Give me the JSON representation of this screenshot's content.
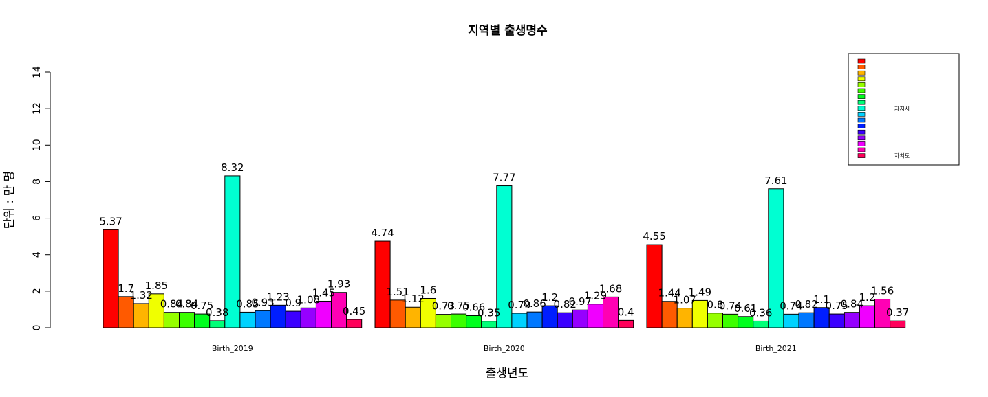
{
  "chart_data": {
    "type": "bar",
    "title": "지역별 출생명수",
    "xlabel": "출생년도",
    "ylabel": "단위 : 만 명",
    "ylim": [
      0,
      14
    ],
    "yticks": [
      0,
      2,
      4,
      6,
      8,
      10,
      12,
      14
    ],
    "grid": false,
    "legend_position": "top-right",
    "categories": [
      "Birth_2019",
      "Birth_2020",
      "Birth_2021"
    ],
    "series": [
      {
        "color": "#FF0000",
        "values": [
          5.37,
          4.74,
          4.55
        ]
      },
      {
        "color": "#FF5A00",
        "values": [
          1.7,
          1.51,
          1.44
        ]
      },
      {
        "color": "#FFB400",
        "values": [
          1.32,
          1.12,
          1.07
        ]
      },
      {
        "color": "#F0FF00",
        "values": [
          1.85,
          1.6,
          1.49
        ]
      },
      {
        "color": "#96FF00",
        "values": [
          0.84,
          0.73,
          0.8
        ]
      },
      {
        "color": "#3CFF00",
        "values": [
          0.84,
          0.75,
          0.74
        ]
      },
      {
        "color": "#00FF1E",
        "values": [
          0.75,
          0.66,
          0.61
        ]
      },
      {
        "color": "#00FF78",
        "values": [
          0.38,
          0.35,
          0.36
        ]
      },
      {
        "color": "#00FFD2",
        "values": [
          8.32,
          7.77,
          7.61
        ]
      },
      {
        "color": "#00D2FF",
        "values": [
          0.85,
          0.79,
          0.74
        ]
      },
      {
        "color": "#0078FF",
        "values": [
          0.93,
          0.86,
          0.82
        ]
      },
      {
        "color": "#001EFF",
        "values": [
          1.23,
          1.2,
          1.1
        ]
      },
      {
        "color": "#3C00FF",
        "values": [
          0.9,
          0.82,
          0.75
        ]
      },
      {
        "color": "#9600FF",
        "values": [
          1.08,
          0.97,
          0.84
        ]
      },
      {
        "color": "#F000FF",
        "values": [
          1.45,
          1.29,
          1.2
        ]
      },
      {
        "color": "#FF00B4",
        "values": [
          1.93,
          1.68,
          1.56
        ]
      },
      {
        "color": "#FF005A",
        "values": [
          0.45,
          0.4,
          0.37
        ]
      }
    ],
    "data_labels": [
      [
        "5.37",
        "1.7",
        "1.32",
        "1.85",
        "0.84",
        "0.84",
        "0.75",
        "0.38",
        "8.32",
        "0.85",
        "0.93",
        "1.23",
        "0.9",
        "1.08",
        "1.45",
        "1.93",
        "0.45"
      ],
      [
        "4.74",
        "1.51",
        "1.12",
        "1.6",
        "0.73",
        "0.75",
        "0.66",
        "0.35",
        "7.77",
        "0.79",
        "0.86",
        "1.2",
        "0.82",
        "0.97",
        "1.29",
        "1.68",
        "0.4"
      ],
      [
        "4.55",
        "1.44",
        "1.07",
        "1.49",
        "0.8",
        "0.74",
        "0.61",
        "0.36",
        "7.61",
        "0.74",
        "0.82",
        "1.1",
        "0.75",
        "0.84",
        "1.2",
        "1.56",
        "0.37"
      ]
    ],
    "legend_entries": [
      "",
      "",
      "",
      "",
      "",
      "",
      "",
      "",
      "자치시",
      "",
      "",
      "",
      "",
      "",
      "",
      "",
      "자치도"
    ]
  }
}
